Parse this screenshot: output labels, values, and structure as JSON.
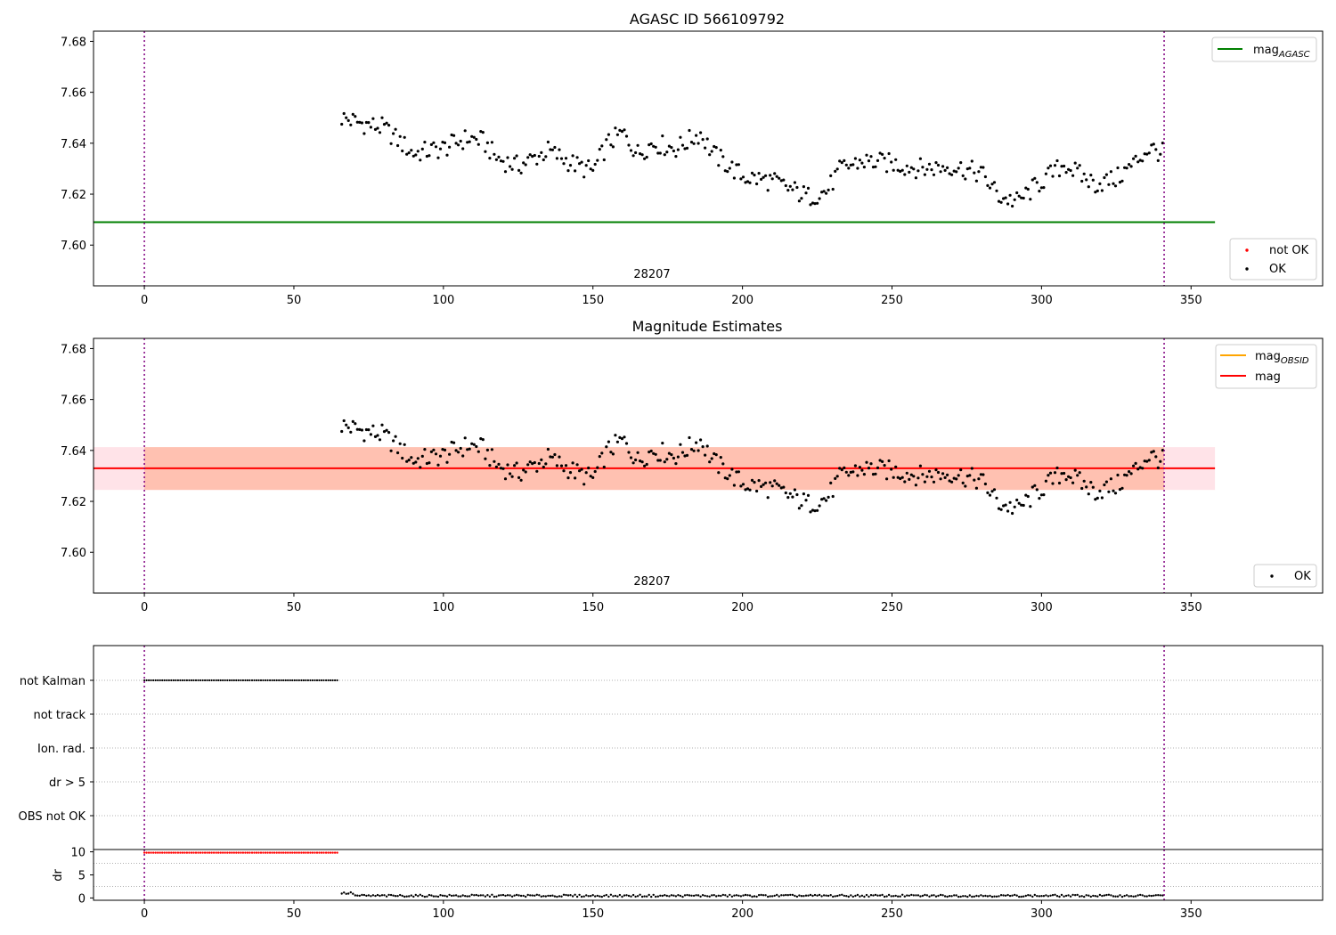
{
  "chart_data": [
    {
      "type": "scatter",
      "title": "AGASC ID 566109792",
      "xlim": [
        -17,
        394
      ],
      "ylim": [
        7.584,
        7.684
      ],
      "xticks": [
        0,
        50,
        100,
        150,
        200,
        250,
        300,
        350
      ],
      "yticks": [
        7.6,
        7.62,
        7.64,
        7.66,
        7.68
      ],
      "ytick_labels": [
        "7.60",
        "7.62",
        "7.64",
        "7.66",
        "7.68"
      ],
      "annotation": "28207",
      "vlines": [
        0,
        341
      ],
      "hline": {
        "name": "mag_AGASC",
        "y": 7.609,
        "x_range": [
          -17,
          358
        ],
        "color": "#008000"
      },
      "legend_lines": [
        {
          "label": "mag",
          "sub": "AGASC",
          "color": "#008000"
        }
      ],
      "legend_markers": [
        {
          "label": "not OK",
          "color": "#ff0000"
        },
        {
          "label": "OK",
          "color": "#000000"
        }
      ],
      "series": [
        {
          "name": "OK",
          "x_start": 66,
          "x_end": 341,
          "color": "#000000"
        }
      ]
    },
    {
      "type": "scatter",
      "title": "Magnitude Estimates",
      "xlim": [
        -17,
        394
      ],
      "ylim": [
        7.584,
        7.684
      ],
      "xticks": [
        0,
        50,
        100,
        150,
        200,
        250,
        300,
        350
      ],
      "yticks": [
        7.6,
        7.62,
        7.64,
        7.66,
        7.68
      ],
      "ytick_labels": [
        "7.60",
        "7.62",
        "7.64",
        "7.66",
        "7.68"
      ],
      "annotation": "28207",
      "vlines": [
        0,
        341
      ],
      "mag": 7.633,
      "band_obsid": [
        7.6245,
        7.6413
      ],
      "band_full": [
        7.6245,
        7.6413
      ],
      "legend_lines": [
        {
          "label": "mag",
          "sub": "OBSID",
          "color": "#ffa500"
        },
        {
          "label": "mag",
          "sub": "",
          "color": "#ff0000"
        }
      ],
      "legend_markers": [
        {
          "label": "OK",
          "color": "#000000"
        }
      ],
      "series": [
        {
          "name": "OK",
          "x_start": 66,
          "x_end": 341,
          "color": "#000000"
        }
      ]
    },
    {
      "type": "scatter",
      "title": "",
      "xlim": [
        -17,
        394
      ],
      "xticks": [
        0,
        50,
        100,
        150,
        200,
        250,
        300,
        350
      ],
      "flags": [
        "not Kalman",
        "not track",
        "Ion. rad.",
        "dr > 5",
        "OBS not OK"
      ],
      "flag_ranges": {
        "not Kalman": [
          0,
          65
        ]
      },
      "vlines": [
        0,
        341
      ],
      "dr": {
        "ylabel": "dr",
        "ylim": [
          -0.5,
          10.5
        ],
        "yticks": [
          0,
          5,
          10
        ],
        "high_range": [
          0,
          65
        ],
        "high_value": 9.8,
        "low_range": [
          66,
          341
        ]
      }
    }
  ],
  "colors": {
    "ok": "#000000",
    "not_ok": "#ff0000",
    "vline": "#800080",
    "band_obsid": "#ffa07a",
    "band_full": "#ffc0cb"
  }
}
